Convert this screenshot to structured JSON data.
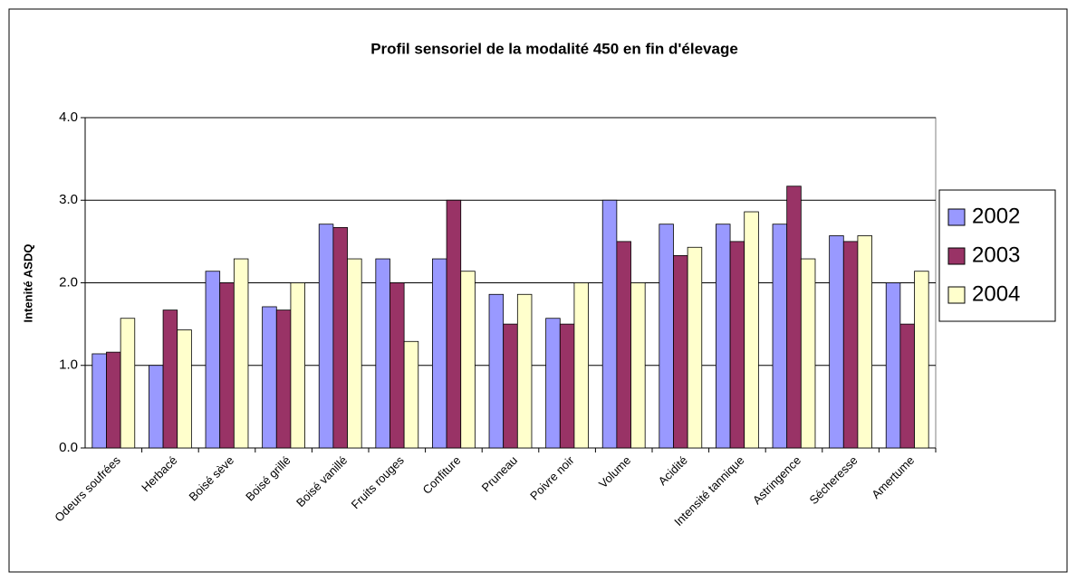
{
  "chart_data": {
    "type": "bar",
    "title": "Profil sensoriel de la modalité 450 en fin d'élevage",
    "y_label": "Intenité ASDQ",
    "categories": [
      "Odeurs soufrées",
      "Herbacé",
      "Boisé sève",
      "Boisé grillé",
      "Boisé vanillé",
      "Fruits rouges",
      "Confiture",
      "Pruneau",
      "Poivre noir",
      "Volume",
      "Acidité",
      "Intensité tannique",
      "Astringence",
      "Sécheresse",
      "Amertume"
    ],
    "series": [
      {
        "name": "2002",
        "color": "#9999ff",
        "values": [
          1.14,
          1.0,
          2.14,
          1.71,
          2.71,
          2.29,
          2.29,
          1.86,
          1.57,
          3.0,
          2.71,
          2.71,
          2.71,
          2.57,
          2.0
        ]
      },
      {
        "name": "2003",
        "color": "#993366",
        "values": [
          1.16,
          1.67,
          2.0,
          1.67,
          2.67,
          2.0,
          3.0,
          1.5,
          1.5,
          2.5,
          2.33,
          2.5,
          3.17,
          2.5,
          1.5
        ]
      },
      {
        "name": "2004",
        "color": "#ffffcc",
        "values": [
          1.57,
          1.43,
          2.29,
          2.0,
          2.29,
          1.29,
          2.14,
          1.86,
          2.0,
          2.0,
          2.43,
          2.86,
          2.29,
          2.57,
          2.14
        ]
      }
    ],
    "ylim": [
      0,
      4
    ],
    "yticks": [
      {
        "value": 0,
        "label": "0.0"
      },
      {
        "value": 1,
        "label": "1.0"
      },
      {
        "value": 2,
        "label": "2.0"
      },
      {
        "value": 3,
        "label": "3.0"
      },
      {
        "value": 4,
        "label": "4.0"
      }
    ],
    "grid": true,
    "legend": "right"
  }
}
